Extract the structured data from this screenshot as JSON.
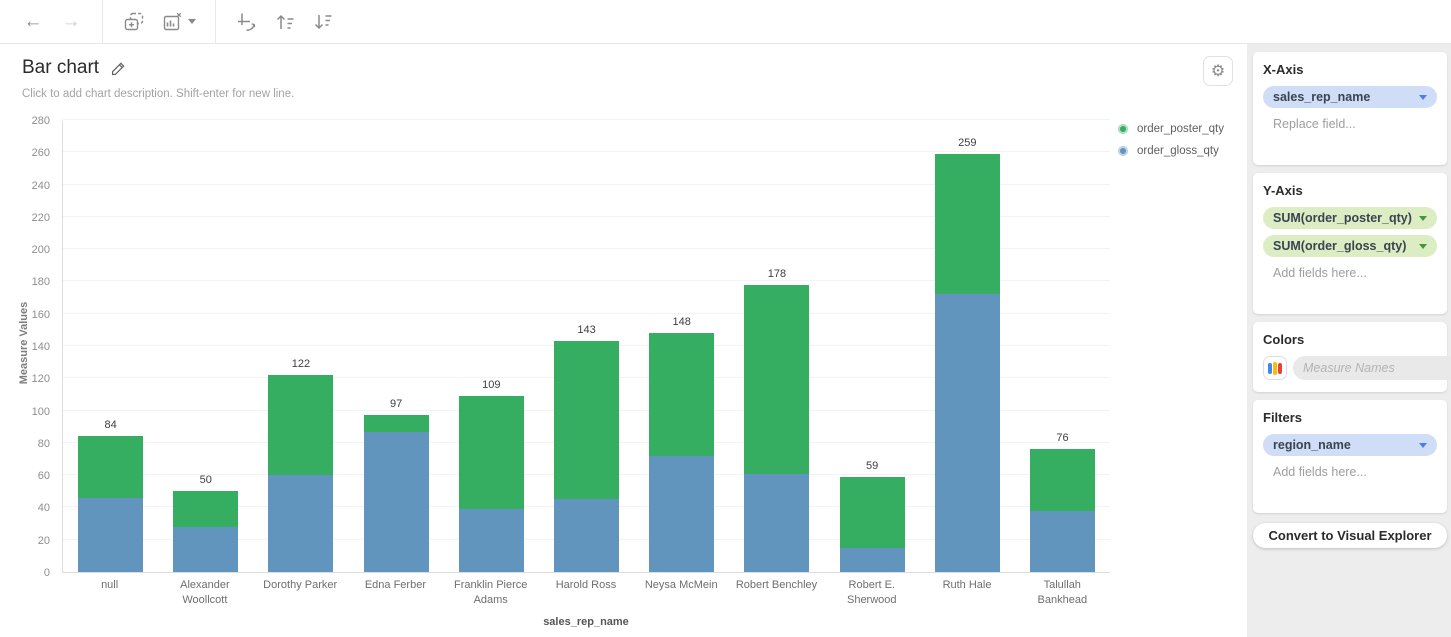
{
  "toolbar": {
    "icons": [
      {
        "name": "back-arrow-icon",
        "glyph": "←",
        "enabled": true
      },
      {
        "name": "forward-arrow-icon",
        "glyph": "→",
        "enabled": false
      },
      {
        "name": "add-chart-icon",
        "glyph": "dashed-frame-plus"
      },
      {
        "name": "remove-chart-icon",
        "glyph": "chart-with-x",
        "has_caret": true
      },
      {
        "name": "swap-axes-icon",
        "glyph": "axes-rotate-arrow"
      },
      {
        "name": "sort-ascending-icon",
        "glyph": "arrow-up-lines"
      },
      {
        "name": "sort-descending-icon",
        "glyph": "arrow-down-lines"
      }
    ]
  },
  "chart_header": {
    "title": "Bar chart",
    "edit_icon": "pencil-icon",
    "description_placeholder": "Click to add chart description. Shift-enter for new line.",
    "settings_icon": "gear-icon"
  },
  "chart_data": {
    "type": "bar",
    "stacked": true,
    "title": "Bar chart",
    "xlabel": "sales_rep_name",
    "ylabel": "Measure Values",
    "ylim": [
      0,
      280
    ],
    "ytick_step": 20,
    "grid": true,
    "legend_position": "top-right",
    "categories": [
      "null",
      "Alexander Woollcott",
      "Dorothy Parker",
      "Edna Ferber",
      "Franklin Pierce Adams",
      "Harold Ross",
      "Neysa McMein",
      "Robert Benchley",
      "Robert E. Sherwood",
      "Ruth Hale",
      "Talullah Bankhead"
    ],
    "series": [
      {
        "name": "order_poster_qty",
        "color": "#36ae62",
        "position": "top",
        "values": [
          38,
          22,
          62,
          10,
          70,
          98,
          76,
          117,
          44,
          87,
          38
        ]
      },
      {
        "name": "order_gloss_qty",
        "color": "#6295be",
        "position": "bottom",
        "values": [
          46,
          28,
          60,
          87,
          39,
          45,
          72,
          61,
          15,
          172,
          38
        ]
      }
    ],
    "totals": [
      84,
      50,
      122,
      97,
      109,
      143,
      148,
      178,
      59,
      259,
      76
    ]
  },
  "sidebar": {
    "x_axis": {
      "title": "X-Axis",
      "fields": [
        "sales_rep_name"
      ],
      "placeholder": "Replace field..."
    },
    "y_axis": {
      "title": "Y-Axis",
      "fields": [
        "SUM(order_poster_qty)",
        "SUM(order_gloss_qty)"
      ],
      "placeholder": "Add fields here..."
    },
    "colors": {
      "title": "Colors",
      "palette_icon": "color-palette-icon",
      "input_placeholder": "Measure Names"
    },
    "filters": {
      "title": "Filters",
      "fields": [
        "region_name"
      ],
      "placeholder": "Add fields here..."
    },
    "convert_button": "Convert to Visual Explorer"
  },
  "theme": {
    "bar_green": "#36ae62",
    "bar_blue": "#6295be",
    "pill_blue_bg": "#cfddf7",
    "pill_green_bg": "#dcedc3",
    "panel_bg": "#ededee",
    "palette_icon_colors": [
      "#4285f4",
      "#fbbc04",
      "#ea4335"
    ]
  }
}
